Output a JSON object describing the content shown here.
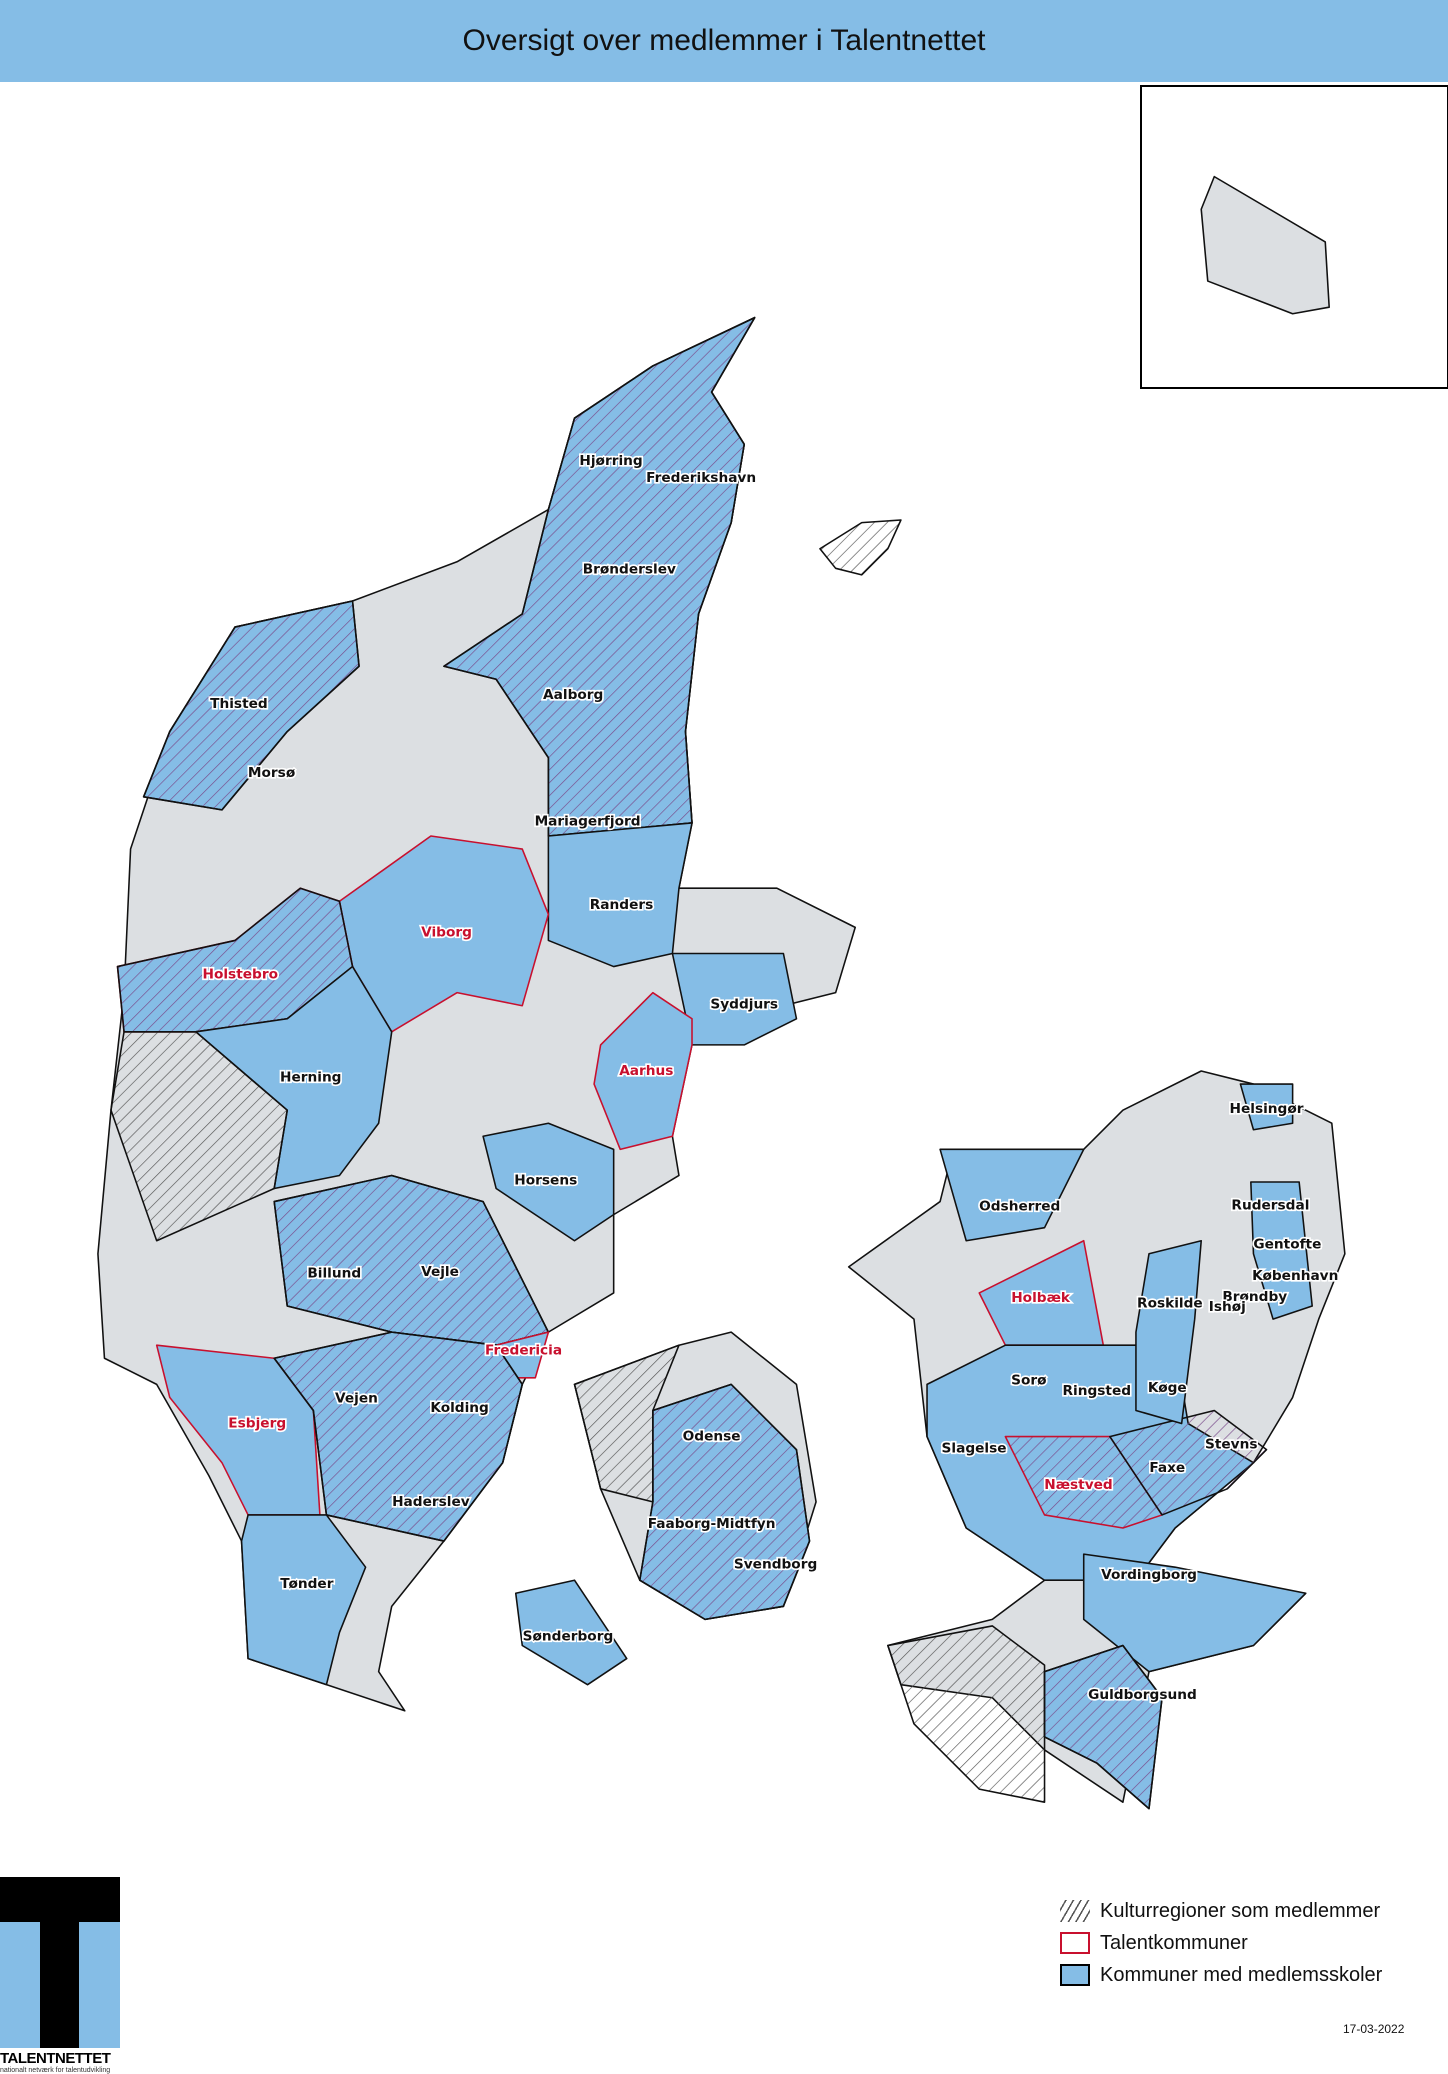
{
  "title": "Oversigt over medlemmer i Talentnettet",
  "colors": {
    "member_schools": "#85bde6",
    "talent_municipality": "#c8102e",
    "other": "#dcdfe2",
    "title_bar": "#85bde6"
  },
  "legend": [
    {
      "symbol": "hatch",
      "label": "Kulturregioner som medlemmer"
    },
    {
      "symbol": "red-outline",
      "label": "Talentkommuner"
    },
    {
      "symbol": "blue-fill",
      "label": "Kommuner med medlemsskoler"
    }
  ],
  "date": "17-03-2022",
  "logo": {
    "name": "TALENTNETTET",
    "tagline": "nationalt netværk for talentudvikling"
  },
  "municipalities": [
    {
      "name": "Hjørring",
      "talent": false
    },
    {
      "name": "Frederikshavn",
      "talent": false
    },
    {
      "name": "Brønderslev",
      "talent": false
    },
    {
      "name": "Thisted",
      "talent": false
    },
    {
      "name": "Aalborg",
      "talent": false
    },
    {
      "name": "Morsø",
      "talent": false
    },
    {
      "name": "Mariagerfjord",
      "talent": false
    },
    {
      "name": "Randers",
      "talent": false
    },
    {
      "name": "Viborg",
      "talent": true
    },
    {
      "name": "Holstebro",
      "talent": true
    },
    {
      "name": "Syddjurs",
      "talent": false
    },
    {
      "name": "Herning",
      "talent": false
    },
    {
      "name": "Aarhus",
      "talent": true
    },
    {
      "name": "Horsens",
      "talent": false
    },
    {
      "name": "Billund",
      "talent": false
    },
    {
      "name": "Vejle",
      "talent": false
    },
    {
      "name": "Fredericia",
      "talent": true
    },
    {
      "name": "Vejen",
      "talent": false
    },
    {
      "name": "Kolding",
      "talent": false
    },
    {
      "name": "Esbjerg",
      "talent": true
    },
    {
      "name": "Odense",
      "talent": false
    },
    {
      "name": "Haderslev",
      "talent": false
    },
    {
      "name": "Faaborg-Midtfyn",
      "talent": false
    },
    {
      "name": "Svendborg",
      "talent": false
    },
    {
      "name": "Tønder",
      "talent": false
    },
    {
      "name": "Sønderborg",
      "talent": false
    },
    {
      "name": "Helsingør",
      "talent": false
    },
    {
      "name": "Odsherred",
      "talent": false
    },
    {
      "name": "Rudersdal",
      "talent": false
    },
    {
      "name": "Gentofte",
      "talent": false
    },
    {
      "name": "København",
      "talent": false
    },
    {
      "name": "Holbæk",
      "talent": true
    },
    {
      "name": "Roskilde",
      "talent": false
    },
    {
      "name": "Brøndby",
      "talent": false
    },
    {
      "name": "Ishøj",
      "talent": false
    },
    {
      "name": "Sorø",
      "talent": false
    },
    {
      "name": "Ringsted",
      "talent": false
    },
    {
      "name": "Køge",
      "talent": false
    },
    {
      "name": "Slagelse",
      "talent": false
    },
    {
      "name": "Stevns",
      "talent": false
    },
    {
      "name": "Næstved",
      "talent": true
    },
    {
      "name": "Faxe",
      "talent": false
    },
    {
      "name": "Vordingborg",
      "talent": false
    },
    {
      "name": "Guldborgsund",
      "talent": false
    }
  ]
}
